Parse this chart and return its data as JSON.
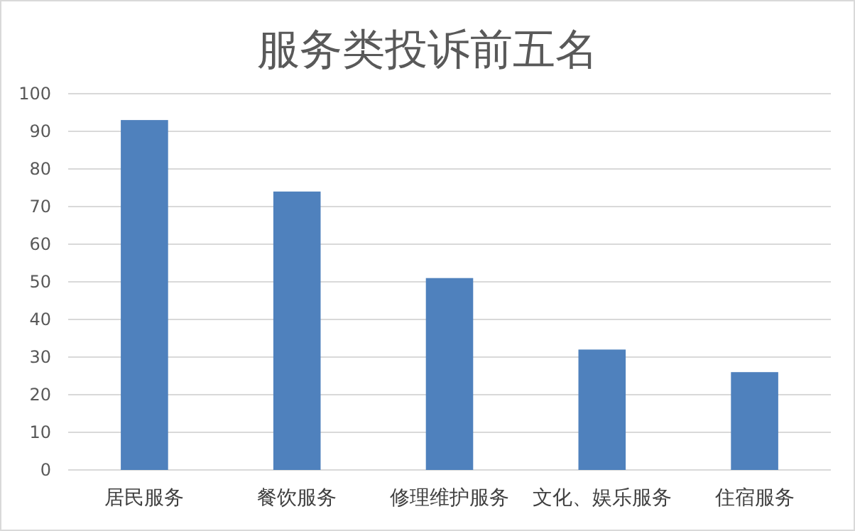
{
  "chart_data": {
    "type": "bar",
    "title": "服务类投诉前五名",
    "categories": [
      "居民服务",
      "餐饮服务",
      "修理维护服务",
      "文化、娱乐服务",
      "住宿服务"
    ],
    "values": [
      93,
      74,
      51,
      32,
      26
    ],
    "color": "#4f81bd",
    "ylim": [
      0,
      100
    ],
    "yticks": [
      0,
      10,
      20,
      30,
      40,
      50,
      60,
      70,
      80,
      90,
      100
    ],
    "grid": "y",
    "legend": false
  }
}
